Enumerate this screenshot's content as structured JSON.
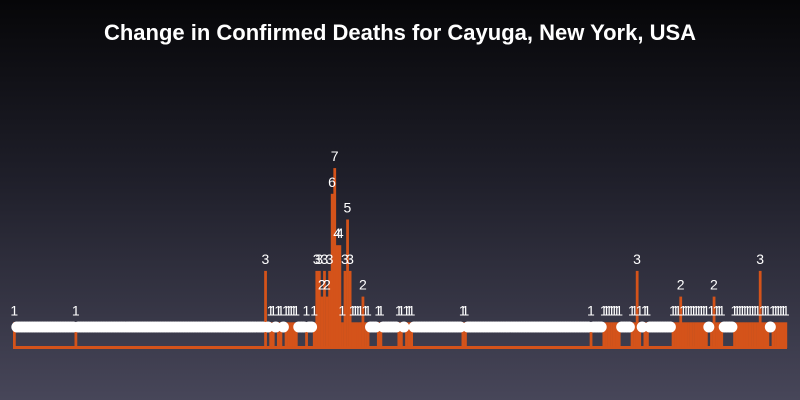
{
  "chart_data": {
    "type": "bar",
    "title": "Change in Confirmed Deaths for Cayuga, New York, USA",
    "xlabel": "",
    "ylabel": "",
    "x_axis_labels_visible": false,
    "y_axis_visible": false,
    "grid": false,
    "ylim": [
      0,
      7
    ],
    "bar_color": "#d4531a",
    "label_color": "#ffffff",
    "zero_marker_color": "#ffffff",
    "values": [
      1,
      0,
      0,
      0,
      0,
      0,
      0,
      0,
      0,
      0,
      0,
      0,
      0,
      0,
      0,
      0,
      0,
      0,
      0,
      0,
      0,
      0,
      0,
      0,
      1,
      0,
      0,
      0,
      0,
      0,
      0,
      0,
      0,
      0,
      0,
      0,
      0,
      0,
      0,
      0,
      0,
      0,
      0,
      0,
      0,
      0,
      0,
      0,
      0,
      0,
      0,
      0,
      0,
      0,
      0,
      0,
      0,
      0,
      0,
      0,
      0,
      0,
      0,
      0,
      0,
      0,
      0,
      0,
      0,
      0,
      0,
      0,
      0,
      0,
      0,
      0,
      0,
      0,
      0,
      0,
      0,
      0,
      0,
      0,
      0,
      0,
      0,
      0,
      0,
      0,
      0,
      0,
      0,
      0,
      0,
      0,
      0,
      0,
      3,
      0,
      1,
      1,
      0,
      1,
      1,
      0,
      1,
      1,
      1,
      1,
      1,
      0,
      0,
      0,
      1,
      0,
      0,
      1,
      3,
      3,
      2,
      3,
      2,
      3,
      6,
      7,
      4,
      4,
      1,
      3,
      5,
      3,
      1,
      1,
      1,
      1,
      2,
      1,
      1,
      0,
      0,
      0,
      1,
      1,
      0,
      0,
      0,
      0,
      0,
      0,
      1,
      1,
      0,
      1,
      1,
      1,
      0,
      0,
      0,
      0,
      0,
      0,
      0,
      0,
      0,
      0,
      0,
      0,
      0,
      0,
      0,
      0,
      0,
      0,
      0,
      1,
      1,
      0,
      0,
      0,
      0,
      0,
      0,
      0,
      0,
      0,
      0,
      0,
      0,
      0,
      0,
      0,
      0,
      0,
      0,
      0,
      0,
      0,
      0,
      0,
      0,
      0,
      0,
      0,
      0,
      0,
      0,
      0,
      0,
      0,
      0,
      0,
      0,
      0,
      0,
      0,
      0,
      0,
      0,
      0,
      0,
      0,
      0,
      0,
      0,
      1,
      0,
      0,
      0,
      0,
      1,
      1,
      1,
      1,
      1,
      1,
      1,
      0,
      0,
      0,
      0,
      1,
      1,
      3,
      1,
      0,
      1,
      1,
      0,
      0,
      0,
      0,
      0,
      0,
      0,
      0,
      0,
      1,
      1,
      1,
      2,
      1,
      1,
      1,
      1,
      1,
      1,
      1,
      1,
      1,
      1,
      0,
      1,
      2,
      1,
      1,
      1,
      0,
      0,
      0,
      0,
      1,
      1,
      1,
      1,
      1,
      1,
      1,
      1,
      1,
      1,
      3,
      1,
      1,
      1,
      0,
      1,
      1,
      1,
      1,
      1,
      1
    ]
  }
}
